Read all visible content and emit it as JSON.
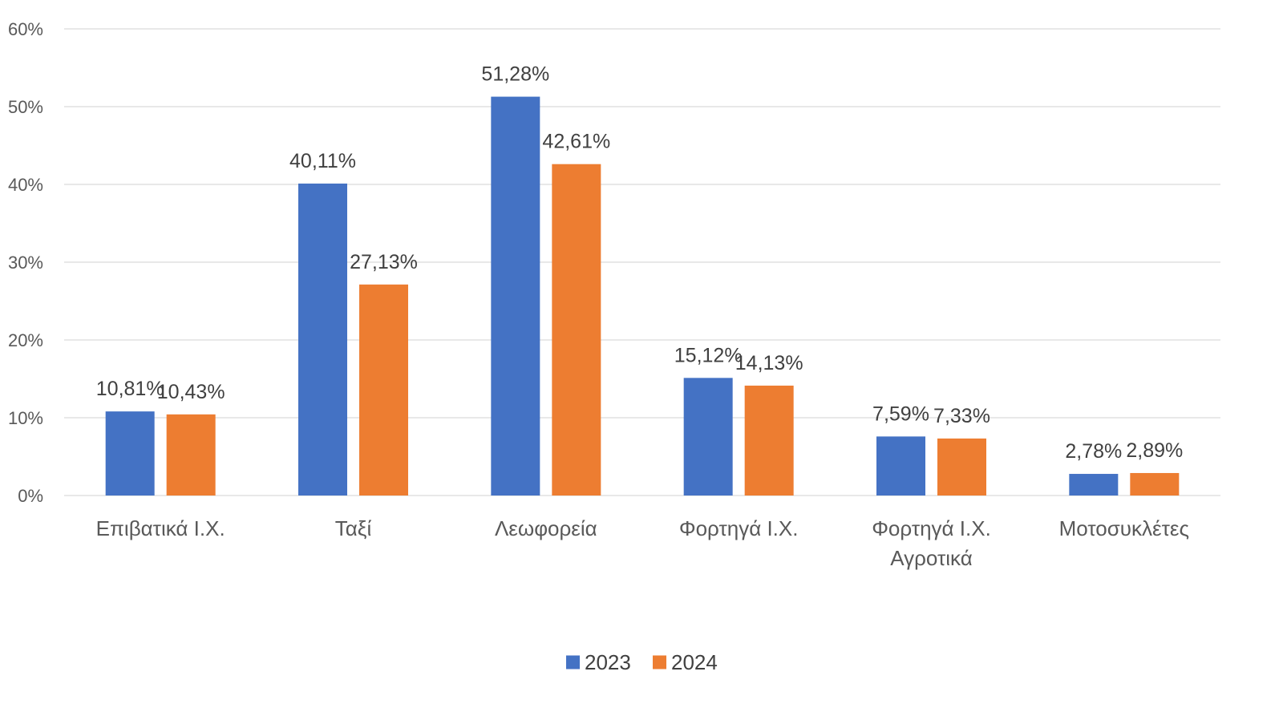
{
  "chart_data": {
    "type": "bar",
    "categories": [
      [
        "Επιβατικά Ι.Χ."
      ],
      [
        "Ταξί"
      ],
      [
        "Λεωφορεία"
      ],
      [
        "Φορτηγά Ι.Χ."
      ],
      [
        "Φορτηγά Ι.Χ.",
        "Αγροτικά"
      ],
      [
        "Μοτοσυκλέτες"
      ]
    ],
    "series": [
      {
        "name": "2023",
        "color": "#4472C4",
        "values": [
          10.81,
          40.11,
          51.28,
          15.12,
          7.59,
          2.78
        ],
        "labels": [
          "10,81%",
          "40,11%",
          "51,28%",
          "15,12%",
          "7,59%",
          "2,78%"
        ]
      },
      {
        "name": "2024",
        "color": "#ED7D31",
        "values": [
          10.43,
          27.13,
          42.61,
          14.13,
          7.33,
          2.89
        ],
        "labels": [
          "10,43%",
          "27,13%",
          "42,61%",
          "14,13%",
          "7,33%",
          "2,89%"
        ]
      }
    ],
    "y_ticks": [
      "0%",
      "10%",
      "20%",
      "30%",
      "40%",
      "50%",
      "60%"
    ],
    "ylim": [
      0,
      60
    ],
    "grid": true,
    "legend": "bottom-center",
    "title": "",
    "xlabel": "",
    "ylabel": ""
  }
}
